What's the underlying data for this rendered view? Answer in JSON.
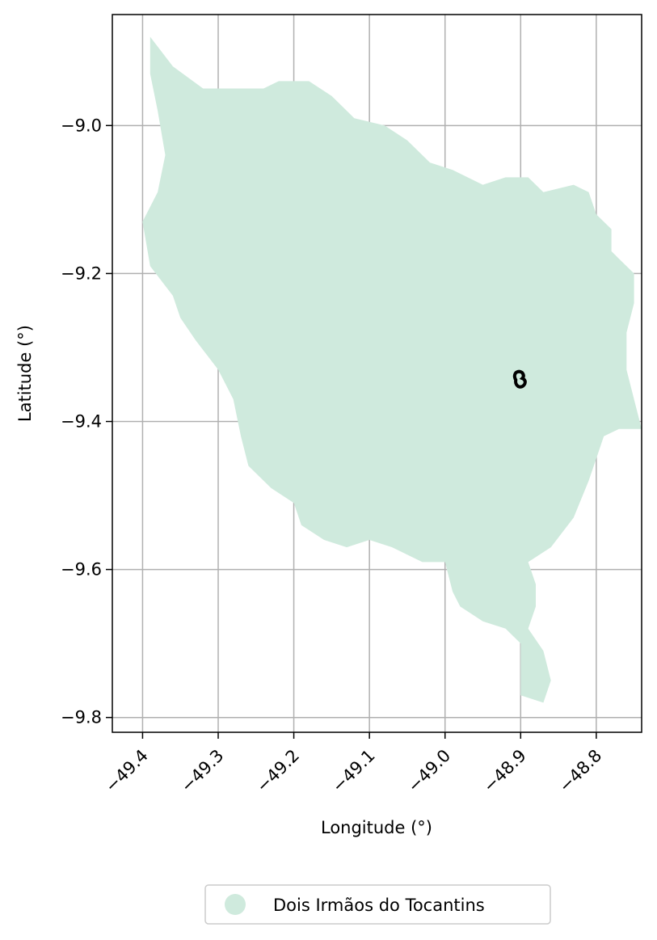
{
  "chart_data": {
    "type": "map",
    "xlabel": "Longitude (°)",
    "ylabel": "Latitude (°)",
    "xlim": [
      -49.44,
      -48.74
    ],
    "ylim": [
      -9.82,
      -8.85
    ],
    "xticks": [
      -49.4,
      -49.3,
      -49.2,
      -49.1,
      -49.0,
      -48.9,
      -48.8
    ],
    "xtick_labels": [
      "−49.4",
      "−49.3",
      "−49.2",
      "−49.1",
      "−49.0",
      "−48.9",
      "−48.8"
    ],
    "yticks": [
      -9.0,
      -9.2,
      -9.4,
      -9.6,
      -9.8
    ],
    "ytick_labels": [
      "−9.0",
      "−9.2",
      "−9.4",
      "−9.6",
      "−9.8"
    ],
    "grid": true,
    "legend_position": "bottom-center",
    "region": {
      "name": "Dois Irmãos do Tocantins",
      "color": "#cfeadd",
      "boundary_lonlat": [
        [
          -49.39,
          -8.88
        ],
        [
          -49.36,
          -8.92
        ],
        [
          -49.32,
          -8.95
        ],
        [
          -49.27,
          -8.95
        ],
        [
          -49.24,
          -8.95
        ],
        [
          -49.22,
          -8.94
        ],
        [
          -49.18,
          -8.94
        ],
        [
          -49.15,
          -8.96
        ],
        [
          -49.12,
          -8.99
        ],
        [
          -49.08,
          -9.0
        ],
        [
          -49.05,
          -9.02
        ],
        [
          -49.02,
          -9.05
        ],
        [
          -48.99,
          -9.06
        ],
        [
          -48.95,
          -9.08
        ],
        [
          -48.92,
          -9.07
        ],
        [
          -48.89,
          -9.07
        ],
        [
          -48.87,
          -9.09
        ],
        [
          -48.83,
          -9.08
        ],
        [
          -48.81,
          -9.09
        ],
        [
          -48.8,
          -9.12
        ],
        [
          -48.78,
          -9.14
        ],
        [
          -48.78,
          -9.17
        ],
        [
          -48.75,
          -9.2
        ],
        [
          -48.75,
          -9.24
        ],
        [
          -48.76,
          -9.28
        ],
        [
          -48.76,
          -9.33
        ],
        [
          -48.75,
          -9.37
        ],
        [
          -48.74,
          -9.41
        ],
        [
          -48.77,
          -9.41
        ],
        [
          -48.79,
          -9.42
        ],
        [
          -48.8,
          -9.45
        ],
        [
          -48.81,
          -9.48
        ],
        [
          -48.83,
          -9.53
        ],
        [
          -48.86,
          -9.57
        ],
        [
          -48.89,
          -9.59
        ],
        [
          -48.88,
          -9.62
        ],
        [
          -48.88,
          -9.65
        ],
        [
          -48.89,
          -9.68
        ],
        [
          -48.87,
          -9.71
        ],
        [
          -48.86,
          -9.75
        ],
        [
          -48.87,
          -9.78
        ],
        [
          -48.9,
          -9.77
        ],
        [
          -48.9,
          -9.74
        ],
        [
          -48.9,
          -9.7
        ],
        [
          -48.92,
          -9.68
        ],
        [
          -48.95,
          -9.67
        ],
        [
          -48.98,
          -9.65
        ],
        [
          -48.99,
          -9.63
        ],
        [
          -49.0,
          -9.59
        ],
        [
          -49.03,
          -9.59
        ],
        [
          -49.07,
          -9.57
        ],
        [
          -49.1,
          -9.56
        ],
        [
          -49.13,
          -9.57
        ],
        [
          -49.16,
          -9.56
        ],
        [
          -49.19,
          -9.54
        ],
        [
          -49.2,
          -9.51
        ],
        [
          -49.23,
          -9.49
        ],
        [
          -49.26,
          -9.46
        ],
        [
          -49.27,
          -9.42
        ],
        [
          -49.28,
          -9.37
        ],
        [
          -49.3,
          -9.33
        ],
        [
          -49.33,
          -9.29
        ],
        [
          -49.35,
          -9.26
        ],
        [
          -49.36,
          -9.23
        ],
        [
          -49.39,
          -9.19
        ],
        [
          -49.4,
          -9.13
        ],
        [
          -49.38,
          -9.09
        ],
        [
          -49.37,
          -9.04
        ],
        [
          -49.38,
          -8.98
        ],
        [
          -49.39,
          -8.93
        ]
      ]
    },
    "marker": {
      "color": "#000000",
      "lon": -48.9,
      "lat": -9.345
    },
    "legend": [
      {
        "label": "Dois Irmãos do Tocantins",
        "color": "#cfeadd"
      }
    ]
  }
}
